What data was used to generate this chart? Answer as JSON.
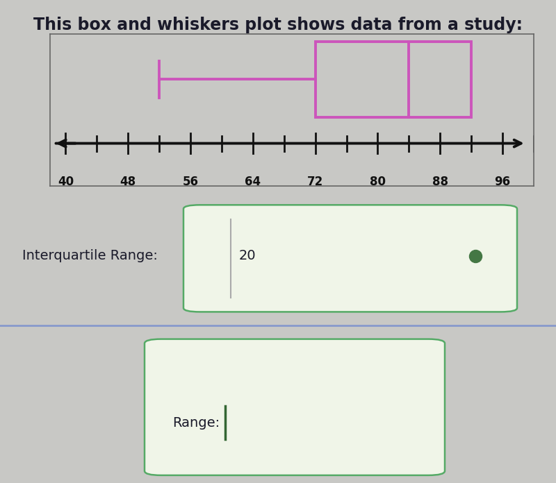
{
  "title": "This box and whiskers plot shows data from a study:",
  "title_fontsize": 17,
  "bg_color": "#c8c8c5",
  "boxplot_panel_bg": "#c8c8c5",
  "number_line_min": 38,
  "number_line_max": 100,
  "tick_values": [
    40,
    48,
    56,
    64,
    72,
    80,
    88,
    96
  ],
  "whisker_min": 52,
  "q1": 72,
  "median": 84,
  "q3": 92,
  "whisker_max": 92,
  "box_color": "#cc55bb",
  "iqr_label": "Interquartile Range:",
  "iqr_value": "20",
  "range_label": "Range:",
  "answer_box_color": "#55aa66",
  "answer_box_bg": "#f0f5e8",
  "iqr_dot_color": "#447744",
  "separator_color": "#8899cc",
  "text_color": "#1a1a2a"
}
